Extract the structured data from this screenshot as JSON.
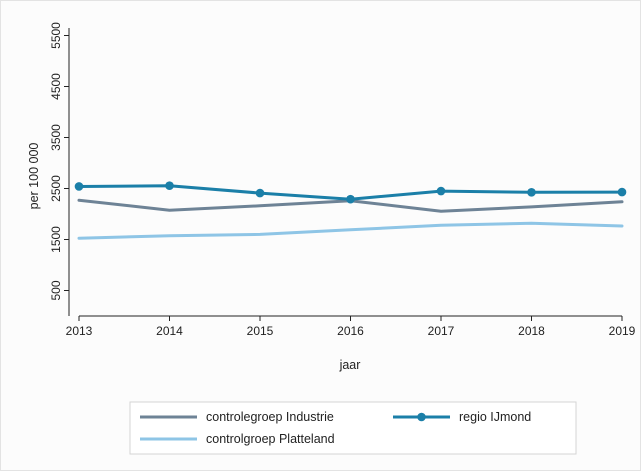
{
  "chart_data": {
    "type": "line",
    "xlabel": "jaar",
    "ylabel": "per 100 000",
    "x": [
      2013,
      2014,
      2015,
      2016,
      2017,
      2018,
      2019
    ],
    "xlim": [
      2013,
      2019
    ],
    "ylim": [
      0,
      6000
    ],
    "yticks": [
      500,
      1500,
      2500,
      3500,
      4500,
      5500
    ],
    "grid": false,
    "legend_position": "bottom",
    "series": [
      {
        "name": "regio IJmond",
        "values": [
          2540,
          2555,
          2410,
          2290,
          2450,
          2425,
          2430
        ],
        "color": "#1b7fa8",
        "markers": true
      },
      {
        "name": "controlegroep Industrie",
        "values": [
          2270,
          2075,
          2160,
          2260,
          2055,
          2140,
          2240
        ],
        "color": "#6e8396",
        "markers": false
      },
      {
        "name": "controlgroep Platteland",
        "values": [
          1525,
          1575,
          1600,
          1690,
          1780,
          1820,
          1765
        ],
        "color": "#8ec5e6",
        "markers": false
      }
    ]
  }
}
